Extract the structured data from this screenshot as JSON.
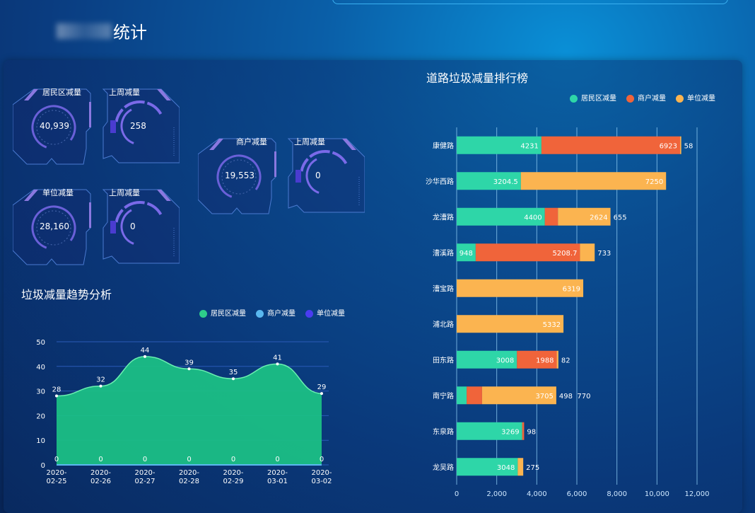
{
  "header": {
    "title": "统计"
  },
  "gauges": [
    {
      "label": "居民区减量",
      "value": "40,939",
      "week_label": "上周减量",
      "week_value": "258"
    },
    {
      "label": "单位减量",
      "value": "28,160",
      "week_label": "上周减量",
      "week_value": "0"
    },
    {
      "label": "商户减量",
      "value": "19,553",
      "week_label": "上周减量",
      "week_value": "0"
    }
  ],
  "trend": {
    "title": "垃圾减量趋势分析",
    "legend": [
      "居民区减量",
      "商户减量",
      "单位减量"
    ],
    "colors": [
      "#2ecc8a",
      "#5ab8f0",
      "#4a3cf0"
    ]
  },
  "ranking": {
    "title": "道路垃圾减量排行榜",
    "legend": [
      "居民区减量",
      "商户减量",
      "单位减量"
    ],
    "colors": [
      "#2ed6a8",
      "#f0643a",
      "#fbb450"
    ]
  },
  "chart_data": [
    {
      "type": "area",
      "categories": [
        "2020-02-25",
        "2020-02-26",
        "2020-02-27",
        "2020-02-28",
        "2020-02-29",
        "2020-03-01",
        "2020-03-02"
      ],
      "series": [
        {
          "name": "居民区减量",
          "values": [
            28,
            32,
            44,
            39,
            35,
            41,
            29
          ]
        },
        {
          "name": "商户减量",
          "values": [
            0,
            0,
            0,
            0,
            0,
            0,
            0
          ]
        },
        {
          "name": "单位减量",
          "values": [
            0,
            0,
            0,
            0,
            0,
            0,
            0
          ]
        }
      ],
      "ylim": [
        0,
        50
      ],
      "yticks": [
        0,
        10,
        20,
        30,
        40,
        50
      ],
      "grid": true,
      "legend": "top-right"
    },
    {
      "type": "bar",
      "orientation": "horizontal",
      "stacked": true,
      "categories": [
        "康健路",
        "沙华西路",
        "龙漕路",
        "漕溪路",
        "漕宝路",
        "浦北路",
        "田东路",
        "南宁路",
        "东泉路",
        "龙吴路"
      ],
      "series": [
        {
          "name": "居民区减量",
          "values": [
            4231,
            3204.5,
            4400,
            948,
            0,
            0,
            3008,
            498,
            3269,
            3048
          ]
        },
        {
          "name": "商户减量",
          "values": [
            6923,
            0,
            655,
            5208.7,
            0,
            0,
            1988,
            770,
            98,
            0
          ]
        },
        {
          "name": "单位减量",
          "values": [
            58,
            7250,
            2624,
            733,
            6319,
            5332,
            82,
            3705,
            0,
            275
          ]
        }
      ],
      "xlim": [
        0,
        12000
      ],
      "xticks": [
        "0",
        "2,000",
        "4,000",
        "6,000",
        "8,000",
        "10,000",
        "12,000"
      ],
      "grid": true,
      "legend": "top-right"
    }
  ]
}
